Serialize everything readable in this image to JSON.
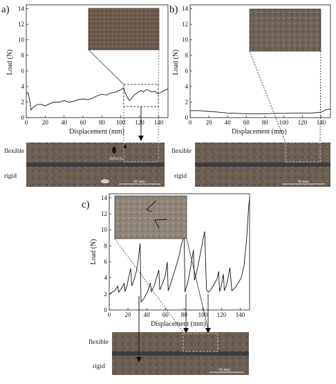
{
  "panels": [
    {
      "id": "a",
      "label": "a)",
      "ylabel": "Load (N)",
      "xlabel": "Displacement (mm)",
      "xticks": [
        "0",
        "20",
        "40",
        "60",
        "80",
        "100",
        "120",
        "140"
      ],
      "yticks": [
        "0",
        "2",
        "4",
        "6",
        "8",
        "10",
        "12",
        "14"
      ],
      "strip_labels": [
        "flexible",
        "rigid"
      ],
      "annotation": "defects",
      "scale_bar": "50 mm"
    },
    {
      "id": "b",
      "label": "b)",
      "ylabel": "Load (N)",
      "xlabel": "Displacement (mm)",
      "xticks": [
        "0",
        "20",
        "40",
        "60",
        "80",
        "100",
        "120",
        "140"
      ],
      "yticks": [
        "0",
        "2",
        "4",
        "6",
        "8",
        "10",
        "12",
        "14"
      ],
      "strip_labels": [
        "flexible",
        "rigid"
      ],
      "scale_bar": "50 mm"
    },
    {
      "id": "c",
      "label": "c)",
      "ylabel": "Load (N)",
      "xlabel": "Displacement (mm)",
      "xticks": [
        "0",
        "20",
        "40",
        "60",
        "80",
        "100",
        "120",
        "140"
      ],
      "yticks": [
        "0",
        "2",
        "4",
        "6",
        "8",
        "10",
        "12",
        "14"
      ],
      "strip_labels": [
        "flexible",
        "rigid"
      ],
      "scale_bar": "50 mm"
    }
  ],
  "chart_data": [
    {
      "type": "line",
      "panel": "a",
      "xlim": [
        0,
        150
      ],
      "ylim": [
        0,
        14.5
      ],
      "series": [
        {
          "x": [
            0,
            2,
            4,
            5,
            8,
            12,
            16,
            20,
            25,
            30,
            35,
            40,
            45,
            50,
            55,
            60,
            65,
            70,
            75,
            80,
            85,
            90,
            95,
            100,
            103,
            106,
            109,
            112,
            115,
            118,
            121,
            124,
            127,
            130,
            133,
            136,
            139,
            142,
            146,
            150
          ],
          "y": [
            3.1,
            3.2,
            1.9,
            1.0,
            1.4,
            1.7,
            1.7,
            1.5,
            1.8,
            2.0,
            2.0,
            2.2,
            2.0,
            2.1,
            2.3,
            2.4,
            2.3,
            2.5,
            2.8,
            3.0,
            2.9,
            3.2,
            3.3,
            3.6,
            3.8,
            2.8,
            2.2,
            2.6,
            3.0,
            3.2,
            3.5,
            3.3,
            3.6,
            3.5,
            3.3,
            3.4,
            3.1,
            3.2,
            3.5,
            3.7
          ]
        }
      ]
    },
    {
      "type": "line",
      "panel": "b",
      "xlim": [
        0,
        150
      ],
      "ylim": [
        0,
        14.5
      ],
      "series": [
        {
          "x": [
            0,
            10,
            20,
            30,
            40,
            50,
            60,
            70,
            80,
            90,
            100,
            110,
            120,
            130,
            140,
            145,
            150
          ],
          "y": [
            0.9,
            0.9,
            0.8,
            0.7,
            0.6,
            0.55,
            0.5,
            0.5,
            0.5,
            0.55,
            0.55,
            0.6,
            0.6,
            0.6,
            0.7,
            1.0,
            1.1
          ]
        }
      ]
    },
    {
      "type": "line",
      "panel": "c",
      "xlim": [
        0,
        150
      ],
      "ylim": [
        0,
        14.5
      ],
      "series": [
        {
          "x": [
            0,
            6,
            9,
            10,
            13,
            16,
            17,
            19,
            21,
            23,
            24,
            26,
            29,
            31,
            33,
            34,
            37,
            41,
            44,
            45,
            48,
            51,
            53,
            54,
            57,
            60,
            62,
            63,
            66,
            70,
            74,
            77,
            80,
            81,
            84,
            87,
            90,
            91,
            94,
            98,
            102,
            104,
            106,
            109,
            112,
            115,
            117,
            118,
            120,
            122,
            123,
            125,
            127,
            129,
            131,
            134,
            137,
            141,
            144,
            147,
            149,
            150
          ],
          "y": [
            2.0,
            2.4,
            3.0,
            2.2,
            2.7,
            3.3,
            2.3,
            3.0,
            4.2,
            5.2,
            3.0,
            3.6,
            4.8,
            6.3,
            8.3,
            1.0,
            1.4,
            2.3,
            3.4,
            2.3,
            3.0,
            4.2,
            5.0,
            2.5,
            3.3,
            4.3,
            6.0,
            2.4,
            3.4,
            4.9,
            6.4,
            8.1,
            9.3,
            2.2,
            3.5,
            5.3,
            7.5,
            3.7,
            5.0,
            7.4,
            9.8,
            2.5,
            2.2,
            2.6,
            3.2,
            3.8,
            4.8,
            2.3,
            3.1,
            4.5,
            2.4,
            3.0,
            4.0,
            5.3,
            2.4,
            2.7,
            3.2,
            4.0,
            5.5,
            9.0,
            12.8,
            14.0
          ]
        }
      ]
    }
  ]
}
